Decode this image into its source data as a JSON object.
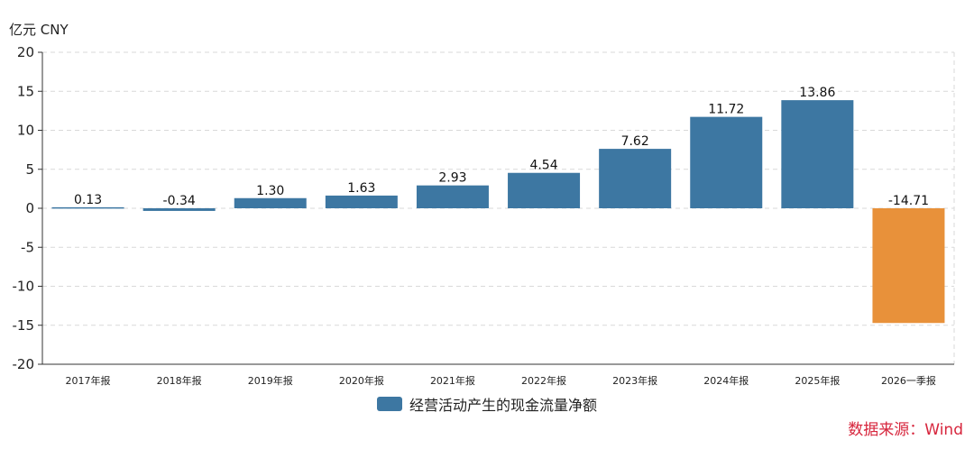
{
  "chart_data": {
    "type": "bar",
    "unit_label": "亿元  CNY",
    "categories": [
      "2017年报",
      "2018年报",
      "2019年报",
      "2020年报",
      "2021年报",
      "2022年报",
      "2023年报",
      "2024年报",
      "2025年报",
      "2026一季报"
    ],
    "series": [
      {
        "name": "经营活动产生的现金流量净额",
        "values": [
          0.13,
          -0.34,
          1.3,
          1.63,
          2.93,
          4.54,
          7.62,
          11.72,
          13.86,
          -14.71
        ]
      }
    ],
    "value_labels": [
      "0.13",
      "-0.34",
      "1.30",
      "1.63",
      "2.93",
      "4.54",
      "7.62",
      "11.72",
      "13.86",
      "-14.71"
    ],
    "highlight_index": 9,
    "ylim": [
      -20,
      20
    ],
    "yticks": [
      20,
      15,
      10,
      5,
      0,
      -5,
      -10,
      -15,
      -20
    ],
    "ytick_labels": [
      "20",
      "15",
      "10",
      "5",
      "0",
      "-5",
      "-10",
      "-15",
      "-20"
    ],
    "grid": true,
    "legend_position": "bottom",
    "colors": {
      "bar": "#3d77a2",
      "highlight": "#e8913a",
      "grid": "#d9d9d9",
      "axis": "#333333"
    }
  },
  "source": "数据来源：Wind"
}
